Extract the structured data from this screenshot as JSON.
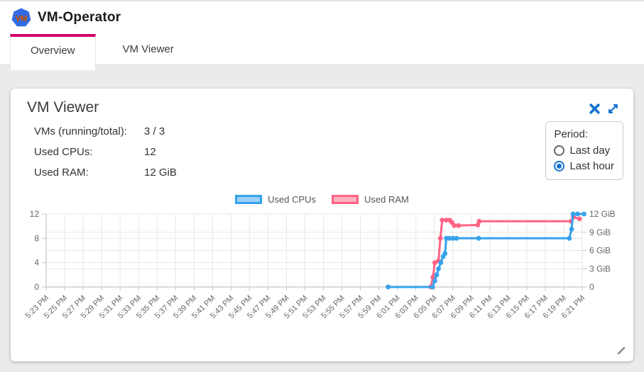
{
  "colors": {
    "accent": "#d4006a",
    "icon_blue": "#1673cf",
    "logo_blue": "#326ce5",
    "logo_text_orange": "#f5711e"
  },
  "app": {
    "title": "VM-Operator",
    "logo_text": "VM"
  },
  "tabs": [
    {
      "label": "Overview",
      "active": true
    },
    {
      "label": "VM Viewer",
      "active": false
    }
  ],
  "card": {
    "title": "VM Viewer",
    "stats": [
      {
        "label": "VMs (running/total):",
        "value": "3 / 3"
      },
      {
        "label": "Used CPUs:",
        "value": "12"
      },
      {
        "label": "Used RAM:",
        "value": "12 GiB"
      }
    ],
    "period": {
      "label": "Period:",
      "options": [
        {
          "label": "Last day",
          "selected": false
        },
        {
          "label": "Last hour",
          "selected": true
        }
      ]
    }
  },
  "chart_data": {
    "type": "line",
    "title": "",
    "xlabel": "",
    "x_unit": "minutes since 5:23 PM",
    "x_ticks": [
      "5:23 PM",
      "5:25 PM",
      "5:27 PM",
      "5:29 PM",
      "5:31 PM",
      "5:33 PM",
      "5:35 PM",
      "5:37 PM",
      "5:39 PM",
      "5:41 PM",
      "5:43 PM",
      "5:45 PM",
      "5:47 PM",
      "5:49 PM",
      "5:51 PM",
      "5:53 PM",
      "5:55 PM",
      "5:57 PM",
      "5:59 PM",
      "6:01 PM",
      "6:03 PM",
      "6:05 PM",
      "6:07 PM",
      "6:09 PM",
      "6:11 PM",
      "6:13 PM",
      "6:15 PM",
      "6:17 PM",
      "6:19 PM",
      "6:21 PM"
    ],
    "x_tick_interval_minutes": 2,
    "left_axis": {
      "range": [
        0,
        12
      ],
      "tick_values": [
        0,
        4,
        8,
        12
      ],
      "tick_labels": [
        "0",
        "4",
        "8",
        "12"
      ]
    },
    "right_axis": {
      "range": [
        0,
        12
      ],
      "tick_values": [
        0,
        3,
        6,
        9,
        12
      ],
      "tick_labels": [
        "0",
        "3 GiB",
        "6 GiB",
        "9 GiB",
        "12 GiB"
      ]
    },
    "grid": true,
    "legend_position": "top",
    "series": [
      {
        "name": "Used CPUs",
        "axis": "left",
        "color": "#36a2eb",
        "fill": "#9ad0f5",
        "points": [
          [
            37.0,
            0
          ],
          [
            41.8,
            0
          ],
          [
            42.05,
            1
          ],
          [
            42.25,
            2
          ],
          [
            42.45,
            3
          ],
          [
            42.7,
            4
          ],
          [
            42.95,
            5
          ],
          [
            43.15,
            5.5
          ],
          [
            43.3,
            8
          ],
          [
            43.6,
            8
          ],
          [
            44.0,
            8
          ],
          [
            44.4,
            8
          ],
          [
            46.8,
            8
          ],
          [
            56.6,
            8
          ],
          [
            56.85,
            9.5
          ],
          [
            57.0,
            12
          ],
          [
            57.5,
            12
          ],
          [
            58.2,
            12
          ]
        ]
      },
      {
        "name": "Used RAM",
        "axis": "right",
        "color": "#ff6384",
        "fill": "#ffb0c1",
        "points": [
          [
            37.0,
            0
          ],
          [
            41.6,
            0
          ],
          [
            41.85,
            1.6
          ],
          [
            42.05,
            4
          ],
          [
            42.45,
            4.3
          ],
          [
            42.65,
            8
          ],
          [
            42.85,
            11
          ],
          [
            43.3,
            11
          ],
          [
            43.65,
            11
          ],
          [
            43.9,
            10.6
          ],
          [
            44.15,
            10.1
          ],
          [
            44.6,
            10.1
          ],
          [
            46.7,
            10.2
          ],
          [
            46.85,
            10.8
          ],
          [
            56.8,
            10.8
          ],
          [
            57.05,
            11.5
          ],
          [
            57.7,
            11.2
          ]
        ]
      }
    ]
  }
}
